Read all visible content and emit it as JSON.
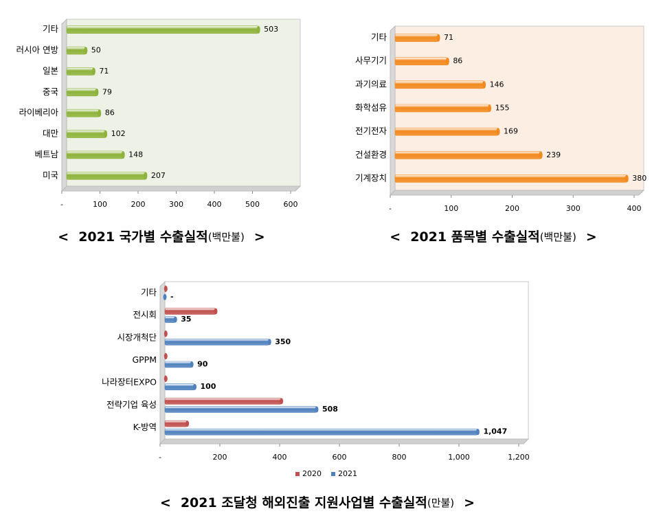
{
  "chart_data": [
    {
      "type": "hbar",
      "title_prefix": "<",
      "title": "2021 국가별 수출실적",
      "unit": "(백만불)",
      "title_suffix": ">",
      "categories": [
        "기타",
        "러시아 연방",
        "일본",
        "중국",
        "라이베리아",
        "대만",
        "베트남",
        "미국"
      ],
      "values": [
        503,
        50,
        71,
        79,
        86,
        102,
        148,
        207
      ],
      "color": "#8db33a",
      "background": "#eef2e6",
      "xlim": [
        0,
        600
      ],
      "xticks": [
        {
          "value": 0,
          "label": "-"
        },
        100,
        200,
        300,
        400,
        500,
        600
      ]
    },
    {
      "type": "hbar",
      "title_prefix": "<",
      "title": "2021 품목별 수출실적",
      "unit": "(백만불)",
      "title_suffix": ">",
      "categories": [
        "기타",
        "사무기기",
        "과기의료",
        "화학섬유",
        "전기전자",
        "건설환경",
        "기계장치"
      ],
      "values": [
        71,
        86,
        146,
        155,
        169,
        239,
        380
      ],
      "color": "#f28a1e",
      "background": "#fdeee4",
      "xlim": [
        0,
        400
      ],
      "xticks": [
        {
          "value": 0,
          "label": "-"
        },
        100,
        200,
        300,
        400
      ]
    },
    {
      "type": "grouped-hbar",
      "title_prefix": "<",
      "title": "2021 조달청 해외진출 지원사업별 수출실적",
      "unit": "(만불)",
      "title_suffix": ">",
      "categories": [
        "기타",
        "전시회",
        "시장개척단",
        "GPPM",
        "나라장터EXPO",
        "전략기업 육성",
        "K-방역"
      ],
      "series": [
        {
          "name": "2020",
          "color": "#c0504d",
          "values": [
            3,
            170,
            3,
            3,
            3,
            390,
            75
          ]
        },
        {
          "name": "2021",
          "color": "#4f81bd",
          "values": [
            0,
            35,
            350,
            90,
            100,
            508,
            1047
          ],
          "value_labels": [
            "-",
            "35",
            "350",
            "90",
            "100",
            "508",
            "1,047"
          ]
        }
      ],
      "background": "#ffffff",
      "xlim": [
        0,
        1200
      ],
      "xticks": [
        {
          "value": 0,
          "label": "-"
        },
        200,
        400,
        600,
        800,
        {
          "value": 1000,
          "label": "1,000"
        },
        {
          "value": 1200,
          "label": "1,200"
        }
      ]
    }
  ]
}
